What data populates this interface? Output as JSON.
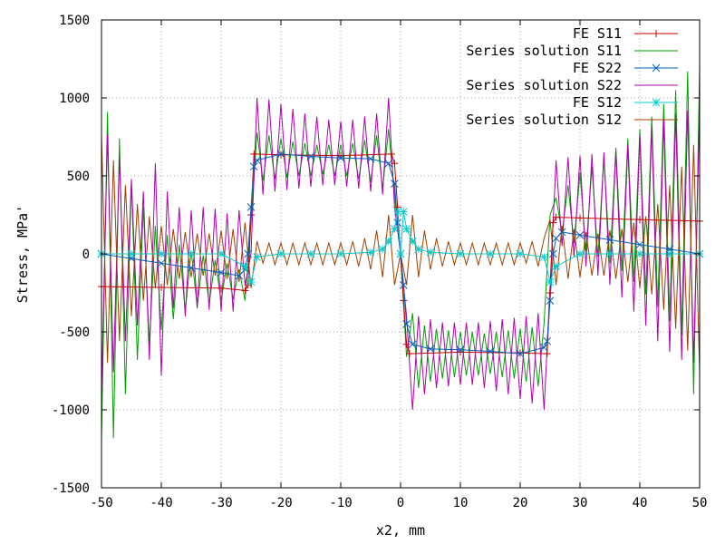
{
  "chart_data": {
    "type": "line",
    "title": "",
    "xlabel": "x2, mm",
    "ylabel": "Stress, MPa'",
    "xlim": [
      -50,
      50
    ],
    "ylim": [
      -1500,
      1500
    ],
    "xticks": [
      -50,
      -40,
      -30,
      -20,
      -10,
      0,
      10,
      20,
      30,
      40,
      50
    ],
    "yticks": [
      -1500,
      -1000,
      -500,
      0,
      500,
      1000,
      1500
    ],
    "grid": true,
    "legend_position": "top-right",
    "series": [
      {
        "name": "FE S11",
        "color": "#cc0000",
        "marker": "plus",
        "x": [
          -50,
          -40,
          -30,
          -26,
          -25.5,
          -25,
          -24.5,
          -20,
          -10,
          -1.5,
          -1,
          -0.5,
          0.5,
          1,
          1.5,
          10,
          20,
          24.5,
          25,
          25.5,
          26,
          30,
          40,
          50
        ],
        "values": [
          -210,
          -215,
          -220,
          -235,
          -200,
          250,
          640,
          635,
          630,
          640,
          580,
          300,
          -300,
          -580,
          -640,
          -630,
          -635,
          -640,
          -250,
          200,
          235,
          230,
          220,
          210
        ]
      },
      {
        "name": "Series solution S11",
        "color": "#00a000",
        "marker": "none",
        "x": [
          -50,
          -49,
          -48,
          -47,
          -46,
          -45,
          -44,
          -43,
          -42,
          -41,
          -40,
          -39,
          -38,
          -37,
          -36,
          -35,
          -34,
          -33,
          -32,
          -31,
          -30,
          -29,
          -28,
          -27,
          -26,
          -25,
          -24,
          -23,
          -22,
          -21,
          -20,
          -19,
          -18,
          -17,
          -16,
          -15,
          -14,
          -13,
          -12,
          -11,
          -10,
          -9,
          -8,
          -7,
          -6,
          -5,
          -4,
          -3,
          -2,
          -1,
          0,
          1,
          2,
          3,
          4,
          5,
          6,
          7,
          8,
          9,
          10,
          11,
          12,
          13,
          14,
          15,
          16,
          17,
          18,
          19,
          20,
          21,
          22,
          23,
          24,
          25,
          26,
          27,
          28,
          29,
          30,
          31,
          32,
          33,
          34,
          35,
          36,
          37,
          38,
          39,
          40,
          41,
          42,
          43,
          44,
          45,
          46,
          47,
          48,
          49,
          50
        ],
        "values": [
          -1190,
          910,
          -1180,
          740,
          -900,
          460,
          -680,
          300,
          -580,
          180,
          -490,
          120,
          -420,
          60,
          -370,
          20,
          -340,
          -10,
          -320,
          -40,
          -300,
          -60,
          -290,
          -100,
          -300,
          200,
          780,
          470,
          760,
          480,
          740,
          490,
          720,
          500,
          710,
          500,
          700,
          510,
          700,
          500,
          700,
          500,
          710,
          480,
          730,
          460,
          760,
          420,
          800,
          380,
          0,
          -660,
          -380,
          -860,
          -460,
          -820,
          -480,
          -800,
          -490,
          -790,
          -500,
          -780,
          -500,
          -780,
          -510,
          -770,
          -500,
          -790,
          -490,
          -800,
          -480,
          -820,
          -470,
          -850,
          -440,
          250,
          360,
          130,
          440,
          70,
          520,
          20,
          560,
          -20,
          620,
          -60,
          680,
          -110,
          740,
          -180,
          800,
          -260,
          880,
          -340,
          960,
          -430,
          1050,
          -520,
          1170,
          -900,
          1190
        ]
      },
      {
        "name": "FE S22",
        "color": "#0060c0",
        "marker": "cross",
        "x": [
          -50,
          -45,
          -40,
          -35,
          -30,
          -27,
          -26,
          -25.5,
          -25,
          -24.5,
          -24,
          -20,
          -15,
          -10,
          -5,
          -2,
          -1,
          -0.5,
          0,
          0.5,
          1,
          2,
          5,
          10,
          15,
          20,
          24,
          24.5,
          25,
          25.5,
          26,
          27,
          30,
          35,
          40,
          45,
          50
        ],
        "values": [
          0,
          -30,
          -60,
          -90,
          -120,
          -140,
          -100,
          0,
          300,
          560,
          600,
          640,
          625,
          615,
          610,
          580,
          450,
          200,
          0,
          -200,
          -450,
          -580,
          -610,
          -615,
          -625,
          -640,
          -600,
          -560,
          -300,
          0,
          100,
          140,
          120,
          90,
          60,
          30,
          0
        ]
      },
      {
        "name": "Series solution S22",
        "color": "#b000b0",
        "marker": "none",
        "x": [
          -50,
          -49,
          -48,
          -47,
          -46,
          -45,
          -44,
          -43,
          -42,
          -41,
          -40,
          -39,
          -38,
          -37,
          -36,
          -35,
          -34,
          -33,
          -32,
          -31,
          -30,
          -29,
          -28,
          -27,
          -26,
          -25,
          -24,
          -23,
          -22,
          -21,
          -20,
          -19,
          -18,
          -17,
          -16,
          -15,
          -14,
          -13,
          -12,
          -11,
          -10,
          -9,
          -8,
          -7,
          -6,
          -5,
          -4,
          -3,
          -2,
          -1,
          0,
          1,
          2,
          3,
          4,
          5,
          6,
          7,
          8,
          9,
          10,
          11,
          12,
          13,
          14,
          15,
          16,
          17,
          18,
          19,
          20,
          21,
          22,
          23,
          24,
          25,
          26,
          27,
          28,
          29,
          30,
          31,
          32,
          33,
          34,
          35,
          36,
          37,
          38,
          39,
          40,
          41,
          42,
          43,
          44,
          45,
          46,
          47,
          48,
          49,
          50
        ],
        "values": [
          -900,
          760,
          -760,
          620,
          -560,
          480,
          -460,
          400,
          -680,
          580,
          -780,
          400,
          -350,
          300,
          -400,
          280,
          -350,
          300,
          -360,
          290,
          -370,
          260,
          -370,
          280,
          -200,
          0,
          1000,
          380,
          990,
          400,
          960,
          410,
          930,
          420,
          900,
          430,
          880,
          440,
          860,
          440,
          850,
          430,
          860,
          420,
          880,
          400,
          900,
          380,
          1000,
          300,
          0,
          -400,
          -1000,
          -400,
          -900,
          -420,
          -860,
          -440,
          -850,
          -440,
          -840,
          -440,
          -840,
          -440,
          -860,
          -430,
          -880,
          -420,
          -900,
          -410,
          -930,
          -400,
          -960,
          -380,
          -1000,
          -200,
          600,
          50,
          620,
          -20,
          630,
          -80,
          640,
          -140,
          650,
          -200,
          660,
          -280,
          700,
          -370,
          760,
          -460,
          820,
          -560,
          860,
          -630,
          900,
          -680,
          920,
          -700,
          940
        ]
      },
      {
        "name": "FE S12",
        "color": "#00cccc",
        "marker": "star",
        "x": [
          -50,
          -45,
          -40,
          -35,
          -30,
          -26,
          -25,
          -24,
          -20,
          -15,
          -10,
          -5,
          -3,
          -2,
          -1,
          -0.5,
          0,
          0.5,
          1,
          2,
          3,
          5,
          10,
          15,
          20,
          24,
          25,
          26,
          30,
          35,
          40,
          45,
          50
        ],
        "values": [
          0,
          0,
          0,
          0,
          0,
          -80,
          -180,
          -20,
          0,
          0,
          0,
          10,
          30,
          80,
          160,
          270,
          0,
          270,
          160,
          80,
          30,
          10,
          0,
          0,
          0,
          -20,
          -180,
          -80,
          0,
          0,
          0,
          0,
          0
        ]
      },
      {
        "name": "Series solution S12",
        "color": "#a04000",
        "marker": "none",
        "x": [
          -50,
          -49,
          -48,
          -47,
          -46,
          -45,
          -44,
          -43,
          -42,
          -41,
          -40,
          -39,
          -38,
          -37,
          -36,
          -35,
          -34,
          -33,
          -32,
          -31,
          -30,
          -29,
          -28,
          -27,
          -26,
          -25,
          -24,
          -23,
          -22,
          -21,
          -20,
          -19,
          -18,
          -17,
          -16,
          -15,
          -14,
          -13,
          -12,
          -11,
          -10,
          -9,
          -8,
          -7,
          -6,
          -5,
          -4,
          -3,
          -2,
          -1,
          0,
          1,
          2,
          3,
          4,
          5,
          6,
          7,
          8,
          9,
          10,
          11,
          12,
          13,
          14,
          15,
          16,
          17,
          18,
          19,
          20,
          21,
          22,
          23,
          24,
          25,
          26,
          27,
          28,
          29,
          30,
          31,
          32,
          33,
          34,
          35,
          36,
          37,
          38,
          39,
          40,
          41,
          42,
          43,
          44,
          45,
          46,
          47,
          48,
          49,
          50
        ],
        "values": [
          760,
          -700,
          600,
          -560,
          440,
          -400,
          320,
          -300,
          240,
          -220,
          180,
          -200,
          160,
          -160,
          140,
          -150,
          130,
          -140,
          130,
          -140,
          150,
          -160,
          160,
          -180,
          200,
          -220,
          80,
          -60,
          70,
          -70,
          70,
          -70,
          70,
          -70,
          70,
          -70,
          70,
          -70,
          70,
          -70,
          70,
          -70,
          80,
          -80,
          100,
          -100,
          150,
          -150,
          250,
          -200,
          0,
          -200,
          250,
          -150,
          150,
          -100,
          100,
          -80,
          80,
          -70,
          70,
          -70,
          70,
          -70,
          70,
          -70,
          70,
          -70,
          70,
          -70,
          70,
          -60,
          80,
          -80,
          100,
          220,
          -200,
          180,
          -160,
          160,
          -150,
          140,
          -140,
          130,
          -140,
          150,
          -160,
          160,
          -180,
          200,
          -220,
          240,
          -260,
          320,
          -360,
          440,
          -480,
          560,
          -620,
          700,
          -760
        ]
      }
    ]
  }
}
